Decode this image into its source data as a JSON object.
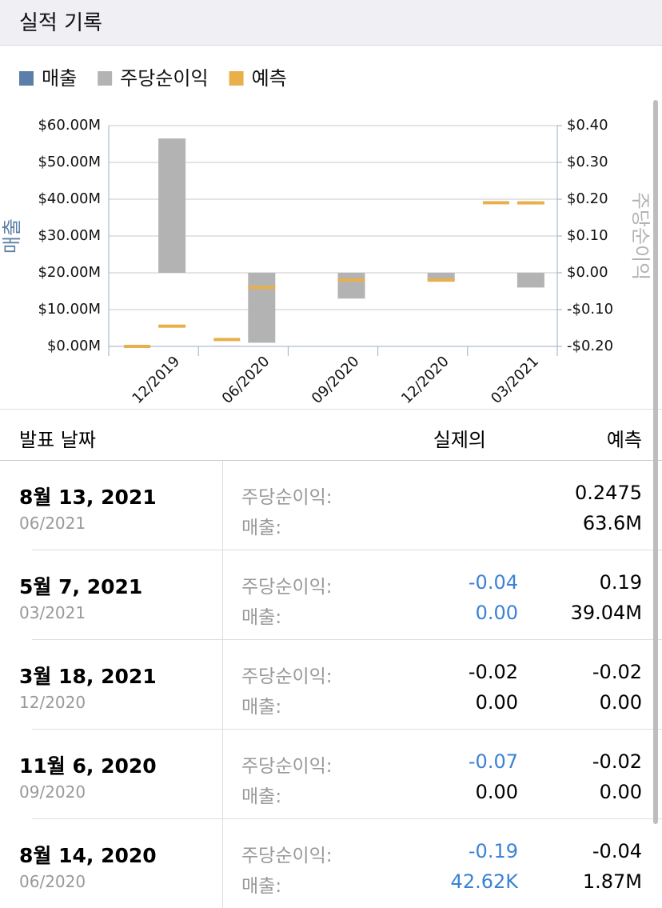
{
  "header": {
    "title": "실적 기록"
  },
  "chart_data": {
    "type": "bar",
    "categories": [
      "12/2019",
      "06/2020",
      "09/2020",
      "12/2020",
      "03/2021"
    ],
    "series": [
      {
        "name": "매출",
        "color": "#5b7fa8",
        "axis": "y",
        "values": [
          0,
          42620,
          0,
          0,
          0
        ]
      },
      {
        "name": "주당순이익",
        "color": "#b3b3b3",
        "axis": "y2",
        "values": [
          0.365,
          -0.19,
          -0.07,
          -0.02,
          -0.04
        ]
      },
      {
        "name": "예측",
        "color": "#e8b04a",
        "values": [
          0,
          1870000,
          null,
          null,
          39040000
        ],
        "values_y2": [
          -0.145,
          -0.04,
          -0.02,
          -0.02,
          0.19
        ]
      }
    ],
    "ylabel": "매출",
    "y2label": "주당순이익",
    "ylabel_color": "#5b7fa8",
    "y2label_color": "#b3b3b3",
    "ylim": [
      0,
      60000000
    ],
    "yticks": [
      {
        "value": 0,
        "label": "$0.00M"
      },
      {
        "value": 10000000,
        "label": "$10.00M"
      },
      {
        "value": 20000000,
        "label": "$20.00M"
      },
      {
        "value": 30000000,
        "label": "$30.00M"
      },
      {
        "value": 40000000,
        "label": "$40.00M"
      },
      {
        "value": 50000000,
        "label": "$50.00M"
      },
      {
        "value": 60000000,
        "label": "$60.00M"
      }
    ],
    "y2lim": [
      -0.2,
      0.4
    ],
    "y2ticks": [
      {
        "value": -0.2,
        "label": "-$0.20"
      },
      {
        "value": -0.1,
        "label": "-$0.10"
      },
      {
        "value": 0,
        "label": "$0.00"
      },
      {
        "value": 0.1,
        "label": "$0.10"
      },
      {
        "value": 0.2,
        "label": "$0.20"
      },
      {
        "value": 0.3,
        "label": "$0.30"
      },
      {
        "value": 0.4,
        "label": "$0.40"
      }
    ],
    "grid": true
  },
  "table": {
    "header": [
      "발표 날짜",
      "실제의",
      "예측"
    ],
    "row_labels": [
      "주당순이익:",
      "매출:"
    ],
    "rows": [
      {
        "date": "8월 13, 2021",
        "period": "06/2021",
        "eps": {
          "forecast": "0.2475"
        },
        "revenue": {
          "forecast": "63.6M"
        }
      },
      {
        "date": "5월 7, 2021",
        "period": "03/2021",
        "eps": {
          "actual": "-0.04",
          "actual_color": "#3b82d6",
          "forecast": "0.19"
        },
        "revenue": {
          "actual": "0.00",
          "actual_color": "#3b82d6",
          "forecast": "39.04M"
        }
      },
      {
        "date": "3월 18, 2021",
        "period": "12/2020",
        "eps": {
          "actual": "-0.02",
          "actual_color": "#000000",
          "forecast": "-0.02"
        },
        "revenue": {
          "actual": "0.00",
          "actual_color": "#000000",
          "forecast": "0.00"
        }
      },
      {
        "date": "11월 6, 2020",
        "period": "09/2020",
        "eps": {
          "actual": "-0.07",
          "actual_color": "#3b82d6",
          "forecast": "-0.02"
        },
        "revenue": {
          "actual": "0.00",
          "actual_color": "#000000",
          "forecast": "0.00"
        }
      },
      {
        "date": "8월 14, 2020",
        "period": "06/2020",
        "eps": {
          "actual": "-0.19",
          "actual_color": "#3b82d6",
          "forecast": "-0.04"
        },
        "revenue": {
          "actual": "42.62K",
          "actual_color": "#3b82d6",
          "forecast": "1.87M"
        }
      }
    ]
  }
}
